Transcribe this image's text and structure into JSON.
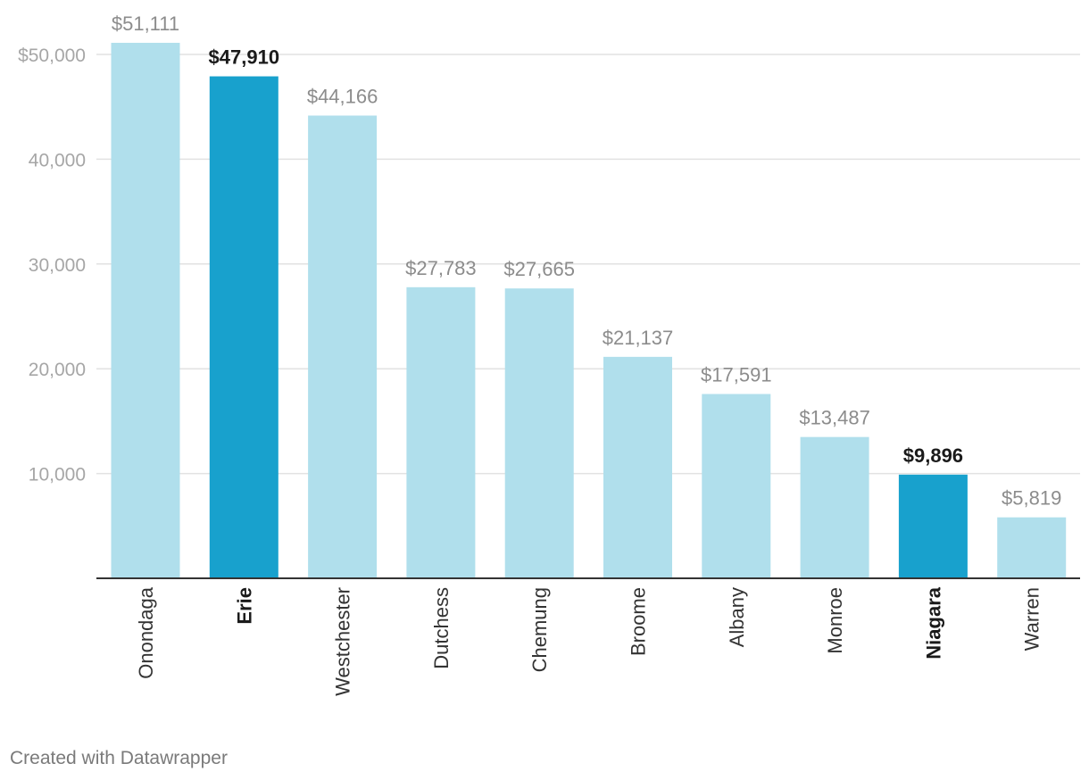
{
  "chart_data": {
    "type": "bar",
    "title": "",
    "xlabel": "",
    "ylabel": "",
    "ylim": [
      0,
      54000
    ],
    "grid": true,
    "categories": [
      "Onondaga",
      "Erie",
      "Westchester",
      "Dutchess",
      "Chemung",
      "Broome",
      "Albany",
      "Monroe",
      "Niagara",
      "Warren"
    ],
    "values": [
      51111,
      47910,
      44166,
      27783,
      27665,
      21137,
      17591,
      13487,
      9896,
      5819
    ],
    "value_labels": [
      "$51,111",
      "$47,910",
      "$44,166",
      "$27,783",
      "$27,665",
      "$21,137",
      "$17,591",
      "$13,487",
      "$9,896",
      "$5,819"
    ],
    "highlighted": [
      "Erie",
      "Niagara"
    ],
    "y_ticks": [
      10000,
      20000,
      30000,
      40000,
      50000
    ],
    "y_tick_labels": [
      "10,000",
      "20,000",
      "30,000",
      "40,000",
      "$50,000"
    ],
    "colors": {
      "bar": "#b0dfec",
      "bar_highlight": "#18a1cd",
      "label": "#8c8c8c",
      "label_highlight": "#1a1a1a",
      "grid": "#e2e2e2",
      "axis": "#333333",
      "tick_label": "#a6a6a6",
      "category_label": "#333333"
    }
  },
  "footer": {
    "credit": "Created with Datawrapper"
  }
}
